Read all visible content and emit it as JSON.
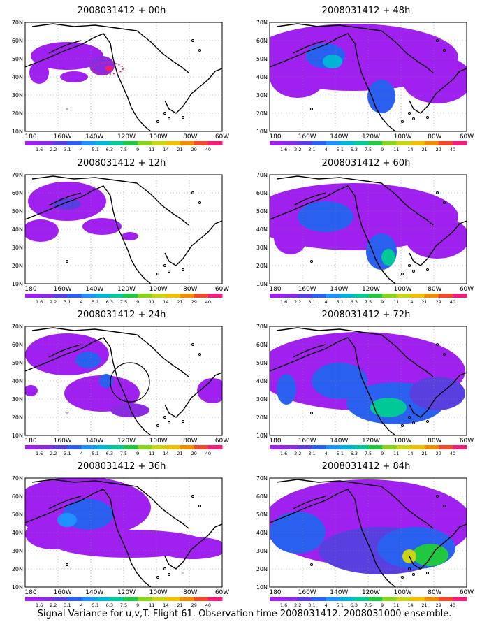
{
  "colorbar": {
    "labels": [
      "1.6",
      "2.2",
      "3.1",
      "4",
      "5.1",
      "6.3",
      "7.5",
      "9",
      "11",
      "14",
      "21",
      "29",
      "40"
    ],
    "colors": [
      "#a020f0",
      "#8a2be2",
      "#5a3fe0",
      "#2a60f0",
      "#1e90ff",
      "#00b4d8",
      "#00c896",
      "#20c840",
      "#88d418",
      "#c8d414",
      "#f0c000",
      "#f08c00",
      "#f04a28",
      "#f01e78"
    ]
  },
  "axes": {
    "lon_labels": [
      "180",
      "160W",
      "140W",
      "120W",
      "100W",
      "80W",
      "60W"
    ],
    "lat_labels": [
      "70N",
      "60N",
      "50N",
      "40N",
      "30N",
      "20N",
      "10N"
    ]
  },
  "panels": [
    {
      "title": "2008031412 + 00h"
    },
    {
      "title": "2008031412 + 12h"
    },
    {
      "title": "2008031412 + 24h"
    },
    {
      "title": "2008031412 + 36h"
    },
    {
      "title": "2008031412 + 48h"
    },
    {
      "title": "2008031412 + 60h"
    },
    {
      "title": "2008031412 + 72h"
    },
    {
      "title": "2008031412 + 84h"
    }
  ],
  "footer": "Signal Variance for u,v,T. Flight 61. Observation time 2008031412. 2008031000 ensemble."
}
